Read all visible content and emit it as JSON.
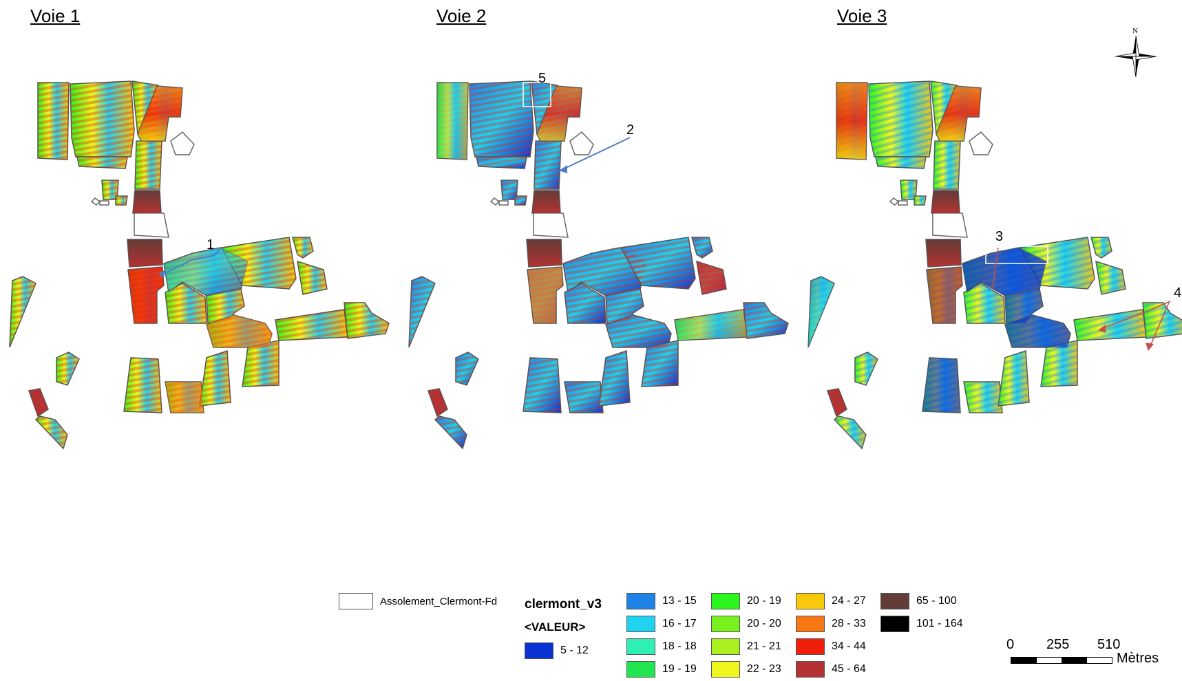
{
  "panels": [
    {
      "title": "Voie 1"
    },
    {
      "title": "Voie 2"
    },
    {
      "title": "Voie 3"
    }
  ],
  "callouts": [
    "1",
    "2",
    "3",
    "4",
    "5"
  ],
  "north_arrow": {
    "label": "N",
    "icon": "north-arrow-icon"
  },
  "legend": {
    "assolement_label": "Assolement_Clermont-Fd",
    "layer_title": "clermont_v3",
    "field_title": "<VALEUR>",
    "classes": [
      {
        "label": "5 - 12",
        "color": "#0a32d2"
      },
      {
        "label": "13 - 15",
        "color": "#1e82e6"
      },
      {
        "label": "16 - 17",
        "color": "#1ed2f0"
      },
      {
        "label": "18 - 18",
        "color": "#2ef0b4"
      },
      {
        "label": "19 - 19",
        "color": "#22e650"
      },
      {
        "label": "20 - 19",
        "color": "#2cf51e"
      },
      {
        "label": "20 - 20",
        "color": "#78f01e"
      },
      {
        "label": "21 - 21",
        "color": "#aaf01e"
      },
      {
        "label": "22 - 23",
        "color": "#f0f51e"
      },
      {
        "label": "24 - 27",
        "color": "#fac80a"
      },
      {
        "label": "28 - 33",
        "color": "#f57814"
      },
      {
        "label": "34 - 44",
        "color": "#f01e0a"
      },
      {
        "label": "45 - 64",
        "color": "#b43232"
      },
      {
        "label": "65 - 100",
        "color": "#643c37"
      },
      {
        "label": "101 - 164",
        "color": "#000000"
      }
    ]
  },
  "scale_bar": {
    "ticks": [
      "0",
      "255",
      "510"
    ],
    "unit": "Mètres"
  }
}
